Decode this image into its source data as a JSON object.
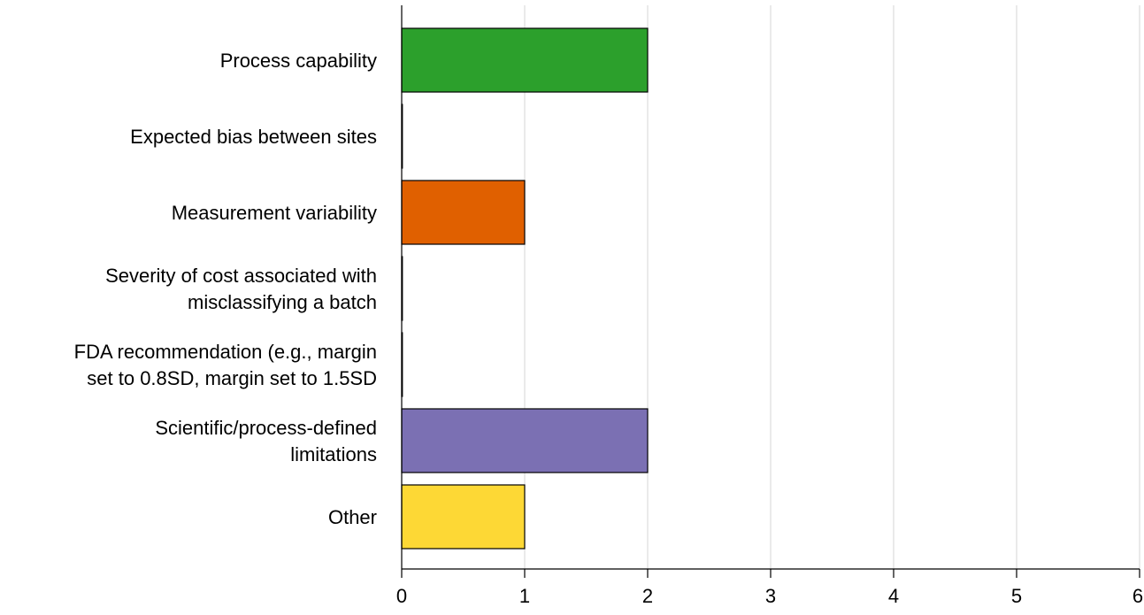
{
  "chart_data": {
    "type": "bar",
    "orientation": "horizontal",
    "title": "",
    "xlabel": "",
    "ylabel": "",
    "categories": [
      [
        "Process capability"
      ],
      [
        "Expected bias between sites"
      ],
      [
        "Measurement variability"
      ],
      [
        "Severity of cost associated with",
        "misclassifying a batch"
      ],
      [
        "FDA recommendation (e.g., margin",
        "set to 0.8SD, margin set to 1.5SD"
      ],
      [
        "Scientific/process-defined",
        "limitations"
      ],
      [
        "Other"
      ]
    ],
    "values": [
      2,
      0,
      1,
      0,
      0,
      2,
      1
    ],
    "colors": [
      "#2ca02c",
      "#000000",
      "#e06000",
      "#000000",
      "#000000",
      "#7b70b3",
      "#fdd835"
    ],
    "xlim": [
      0,
      6
    ],
    "xticks": [
      "0",
      "1",
      "2",
      "3",
      "4",
      "5",
      "6"
    ],
    "grid": "vertical",
    "legend": "none"
  }
}
